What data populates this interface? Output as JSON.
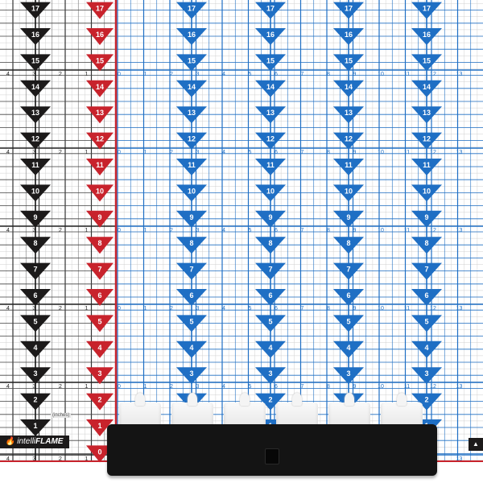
{
  "chart_sheet": {
    "colors": {
      "black": "#1c1a1a",
      "red": "#c8232c",
      "blue": "#1f6fc4",
      "grid": "#bdbdbd"
    },
    "black_markers": [
      1,
      2,
      3,
      4,
      5,
      6,
      7,
      8,
      9,
      10,
      11,
      12,
      13,
      14,
      15,
      16,
      17
    ],
    "red_markers": [
      0,
      1,
      2,
      3,
      4,
      5,
      6,
      7,
      8,
      9,
      10,
      11,
      12,
      13,
      14,
      15,
      16,
      17
    ],
    "blue_markers": [
      1,
      2,
      3,
      4,
      5,
      6,
      7,
      8,
      9,
      10,
      11,
      12,
      13,
      14,
      15,
      16,
      17
    ],
    "left_ruler": [
      "4",
      "3",
      "2",
      "1"
    ],
    "right_ruler": [
      "0",
      "1",
      "2",
      "3",
      "4",
      "5",
      "6",
      "7",
      "8",
      "9",
      "10",
      "11",
      "12",
      "13"
    ],
    "unit_label": "(inches)",
    "logo": {
      "prefix": "intelli",
      "suffix": "FLAME",
      "icon": "flame-icon"
    }
  },
  "product": {
    "candle_count": 6
  }
}
